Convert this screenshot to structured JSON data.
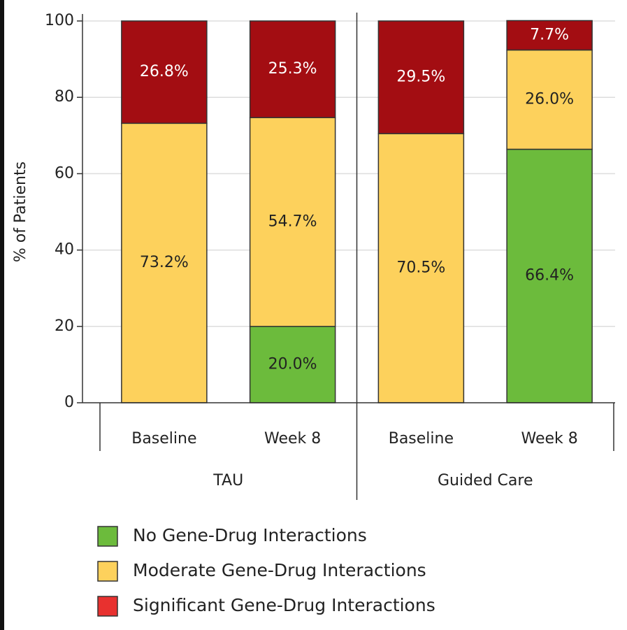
{
  "chart_data": {
    "type": "stacked_bar",
    "ylabel": "% of Patients",
    "categories": [
      "Baseline",
      "Week 8",
      "Baseline",
      "Week 8"
    ],
    "group_labels": [
      "TAU",
      "Guided Care"
    ],
    "series": [
      {
        "name": "No Gene-Drug Interactions",
        "color": "#6cbb3c",
        "legend_color": "#6cbb3c",
        "label_color": "#222222",
        "values": [
          null,
          20.0,
          null,
          66.4
        ],
        "value_labels": [
          null,
          "20.0%",
          null,
          "66.4%"
        ]
      },
      {
        "name": "Moderate Gene-Drug Interactions",
        "color": "#fdd15c",
        "legend_color": "#fdd15c",
        "label_color": "#222222",
        "values": [
          73.2,
          54.7,
          70.5,
          26.0
        ],
        "value_labels": [
          "73.2%",
          "54.7%",
          "70.5%",
          "26.0%"
        ]
      },
      {
        "name": "Significant Gene-Drug Interactions",
        "color": "#a30d12",
        "legend_color": "#e8312f",
        "label_color": "#ffffff",
        "values": [
          26.8,
          25.3,
          29.5,
          7.7
        ],
        "value_labels": [
          "26.8%",
          "25.3%",
          "29.5%",
          "7.7%"
        ]
      }
    ],
    "ylim": [
      0,
      100
    ],
    "yticks": [
      0,
      20,
      40,
      60,
      80,
      100
    ],
    "grid": true
  }
}
